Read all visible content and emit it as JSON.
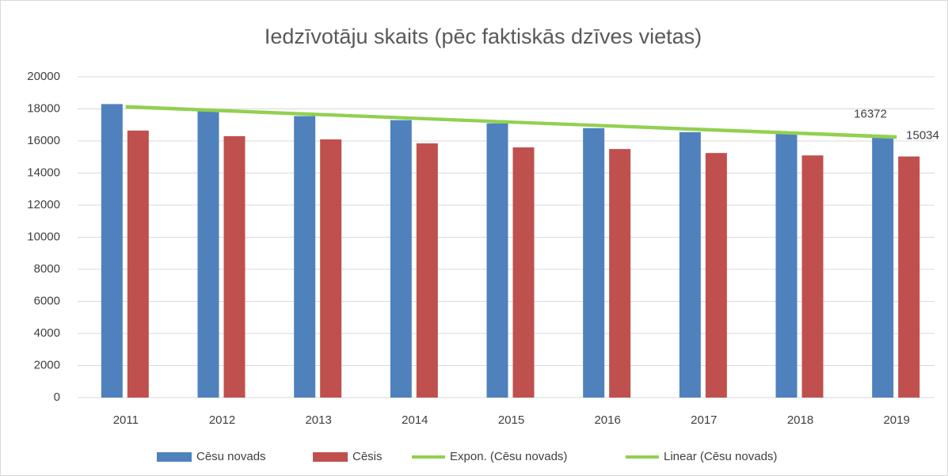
{
  "chart_data": {
    "type": "bar",
    "title": "Iedzīvotāju skaits (pēc faktiskās dzīves vietas)",
    "categories": [
      "2011",
      "2012",
      "2013",
      "2014",
      "2015",
      "2016",
      "2017",
      "2018",
      "2019"
    ],
    "series": [
      {
        "name": "Cēsu novads",
        "color": "#4f81bd",
        "type": "bar",
        "values": [
          18300,
          17850,
          17550,
          17300,
          17100,
          16800,
          16550,
          16450,
          16372
        ]
      },
      {
        "name": "Cēsis",
        "color": "#c0504d",
        "type": "bar",
        "values": [
          16650,
          16300,
          16100,
          15850,
          15600,
          15500,
          15250,
          15100,
          15034
        ]
      },
      {
        "name": "Expon. (Cēsu novads)",
        "color": "#92d050",
        "type": "line",
        "values": [
          18150,
          17900,
          17660,
          17420,
          17180,
          16950,
          16720,
          16490,
          16260
        ]
      },
      {
        "name": "Linear (Cēsu novads)",
        "color": "#92d050",
        "type": "line",
        "values": [
          18120,
          17880,
          17640,
          17410,
          17170,
          16940,
          16700,
          16470,
          16230
        ]
      }
    ],
    "labels": "last",
    "ylim": [
      0,
      20000
    ],
    "yticks": [
      0,
      2000,
      4000,
      6000,
      8000,
      10000,
      12000,
      14000,
      16000,
      18000,
      20000
    ],
    "grid": true,
    "legend": "bottom"
  }
}
